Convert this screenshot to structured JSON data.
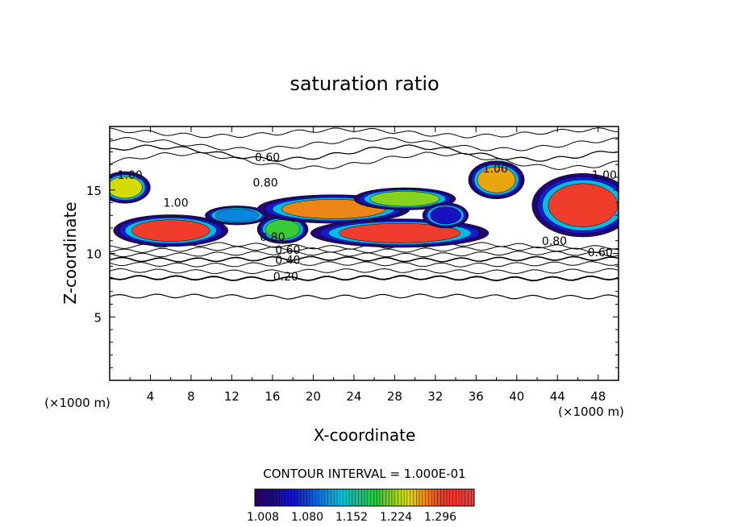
{
  "chart_data": {
    "type": "heatmap",
    "title": "saturation ratio",
    "xlabel": "X-coordinate",
    "ylabel": "Z-coordinate",
    "x_unit_left": "(×1000 m)",
    "x_unit_right": "(×1000 m)",
    "xlim": [
      0,
      50
    ],
    "ylim": [
      0,
      20
    ],
    "x_ticks": [
      4,
      8,
      12,
      16,
      20,
      24,
      28,
      32,
      36,
      40,
      44,
      48
    ],
    "y_ticks": [
      5,
      10,
      15
    ],
    "contour_interval_text": "CONTOUR INTERVAL = 1.000E-01",
    "contour_labels": [
      {
        "text": "0.60",
        "x": 15.5,
        "z": 17.6
      },
      {
        "text": "0.80",
        "x": 15.3,
        "z": 15.6
      },
      {
        "text": "1.00",
        "x": 2.0,
        "z": 16.2
      },
      {
        "text": "1.00",
        "x": 6.5,
        "z": 14.0
      },
      {
        "text": "1.00",
        "x": 37.9,
        "z": 16.7
      },
      {
        "text": "1.00",
        "x": 48.6,
        "z": 16.2
      },
      {
        "text": "0.80",
        "x": 16.0,
        "z": 11.3
      },
      {
        "text": "0.60",
        "x": 17.5,
        "z": 10.3
      },
      {
        "text": "0.40",
        "x": 17.5,
        "z": 9.5
      },
      {
        "text": "0.20",
        "x": 17.3,
        "z": 8.2
      },
      {
        "text": "0.80",
        "x": 43.7,
        "z": 11.0
      },
      {
        "text": "0.60",
        "x": 48.2,
        "z": 10.1
      }
    ],
    "colorbar": {
      "min": 1.0,
      "max": 1.32,
      "tick_labels": [
        "1.008",
        "1.080",
        "1.152",
        "1.224",
        "1.296"
      ]
    }
  }
}
